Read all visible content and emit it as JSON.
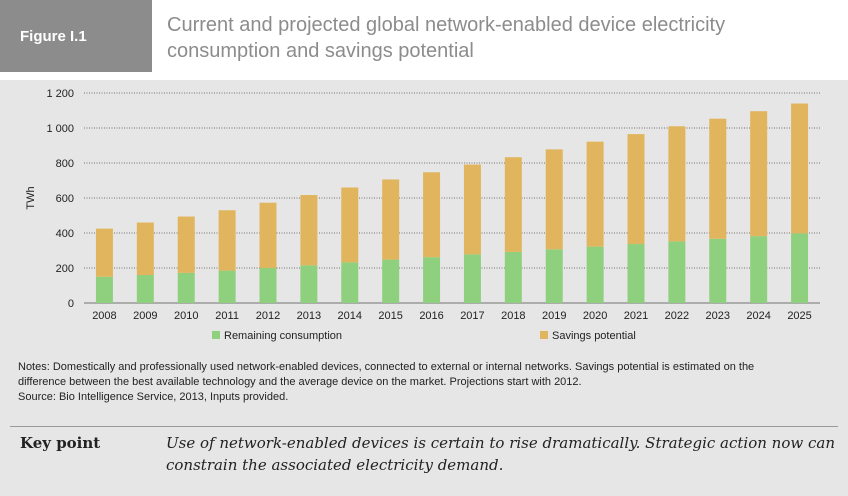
{
  "figure": {
    "tag": "Figure I.1",
    "title_line1": "Current and projected global network-enabled device electricity",
    "title_line2": "consumption and savings potential"
  },
  "colors": {
    "remaining": "#8fd07e",
    "savings": "#e1b55d",
    "grid": "#000000",
    "header_tag_bg": "#8c8c8c",
    "panel_bg": "#e6e6e6",
    "title": "#8c8c8c"
  },
  "chart_data": {
    "type": "bar",
    "stacked": true,
    "categories": [
      "2008",
      "2009",
      "2010",
      "2011",
      "2012",
      "2013",
      "2014",
      "2015",
      "2016",
      "2017",
      "2018",
      "2019",
      "2020",
      "2021",
      "2022",
      "2023",
      "2024",
      "2025"
    ],
    "series": [
      {
        "name": "Remaining consumption",
        "values": [
          150,
          160,
          172,
          185,
          200,
          215,
          232,
          248,
          262,
          278,
          292,
          307,
          322,
          337,
          352,
          367,
          382,
          398
        ]
      },
      {
        "name": "Savings potential",
        "values": [
          275,
          300,
          322,
          345,
          373,
          402,
          428,
          458,
          485,
          513,
          541,
          571,
          600,
          628,
          658,
          686,
          714,
          742
        ]
      }
    ],
    "ylabel": "TWh",
    "ylim": [
      0,
      1200
    ],
    "yticks": [
      "0",
      "200",
      "400",
      "600",
      "800",
      "1 000",
      "1 200"
    ],
    "ytick_values": [
      0,
      200,
      400,
      600,
      800,
      1000,
      1200
    ],
    "grid": true,
    "legend_position": "bottom"
  },
  "notes": {
    "line1": "Notes: Domestically and professionally used network-enabled devices, connected to external or internal networks. Savings potential is estimated on the",
    "line2": "difference between the best available technology and the average device on the market. Projections start with 2012.",
    "line3": "Source: Bio Intelligence Service, 2013, Inputs provided."
  },
  "key_point": {
    "label": "Key point",
    "text": "Use of network-enabled devices is certain to rise dramatically. Strategic action now can constrain the associated electricity demand."
  }
}
